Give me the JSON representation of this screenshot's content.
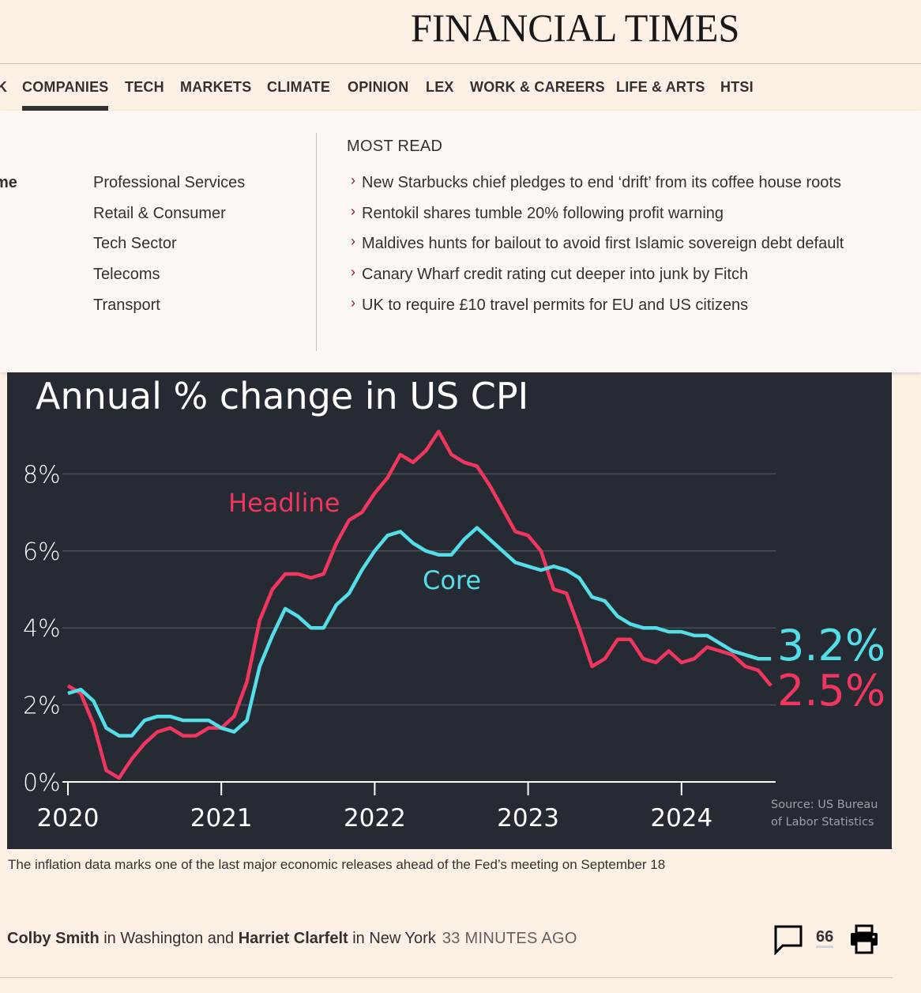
{
  "masthead": {
    "logo": "FINANCIAL TIMES"
  },
  "nav": {
    "items": [
      {
        "label": "K",
        "active": false
      },
      {
        "label": "COMPANIES",
        "active": true
      },
      {
        "label": "TECH",
        "active": false
      },
      {
        "label": "MARKETS",
        "active": false
      },
      {
        "label": "CLIMATE",
        "active": false
      },
      {
        "label": "OPINION",
        "active": false
      },
      {
        "label": "LEX",
        "active": false
      },
      {
        "label": "WORK & CAREERS",
        "active": false
      },
      {
        "label": "LIFE & ARTS",
        "active": false
      },
      {
        "label": "HTSI",
        "active": false
      }
    ]
  },
  "dropdown": {
    "cut_label": "me",
    "sublinks": [
      "Professional Services",
      "Retail & Consumer",
      "Tech Sector",
      "Telecoms",
      "Transport"
    ],
    "most_read_title": "MOST READ",
    "chevron_icon": "›",
    "most_read": [
      "New Starbucks chief pledges to end ‘drift’ from its coffee house roots",
      "Rentokil shares tumble 20% following profit warning",
      "Maldives hunts for bailout to avoid first Islamic sovereign debt default",
      "Canary Wharf credit rating cut deeper into junk by Fitch",
      "UK to require £10 travel permits for EU and US citizens"
    ]
  },
  "chart_data": {
    "type": "line",
    "title": "Annual % change in US CPI",
    "xlabel": "",
    "ylabel": "",
    "x_start": "2020-01",
    "x_frequency": "monthly",
    "xticks": [
      "2020",
      "2021",
      "2022",
      "2023",
      "2024"
    ],
    "yticks": [
      "0%",
      "2%",
      "4%",
      "6%",
      "8%"
    ],
    "ylim": [
      0,
      9.5
    ],
    "grid": true,
    "series": [
      {
        "name": "Headline",
        "color": "#f0365f",
        "end_label": "2.5%",
        "values": [
          2.5,
          2.3,
          1.5,
          0.3,
          0.1,
          0.6,
          1.0,
          1.3,
          1.4,
          1.2,
          1.2,
          1.4,
          1.4,
          1.7,
          2.6,
          4.2,
          5.0,
          5.4,
          5.4,
          5.3,
          5.4,
          6.2,
          6.8,
          7.0,
          7.5,
          7.9,
          8.5,
          8.3,
          8.6,
          9.1,
          8.5,
          8.3,
          8.2,
          7.7,
          7.1,
          6.5,
          6.4,
          6.0,
          5.0,
          4.9,
          4.0,
          3.0,
          3.2,
          3.7,
          3.7,
          3.2,
          3.1,
          3.4,
          3.1,
          3.2,
          3.5,
          3.4,
          3.3,
          3.0,
          2.9,
          2.5
        ]
      },
      {
        "name": "Core",
        "color": "#55dde8",
        "end_label": "3.2%",
        "values": [
          2.3,
          2.4,
          2.1,
          1.4,
          1.2,
          1.2,
          1.6,
          1.7,
          1.7,
          1.6,
          1.6,
          1.6,
          1.4,
          1.3,
          1.6,
          3.0,
          3.8,
          4.5,
          4.3,
          4.0,
          4.0,
          4.6,
          4.9,
          5.5,
          6.0,
          6.4,
          6.5,
          6.2,
          6.0,
          5.9,
          5.9,
          6.3,
          6.6,
          6.3,
          6.0,
          5.7,
          5.6,
          5.5,
          5.6,
          5.5,
          5.3,
          4.8,
          4.7,
          4.3,
          4.1,
          4.0,
          4.0,
          3.9,
          3.9,
          3.8,
          3.8,
          3.6,
          3.4,
          3.3,
          3.2,
          3.2
        ]
      }
    ],
    "annotations": [
      "Headline",
      "Core"
    ],
    "source": [
      "Source: US Bureau",
      "of Labor Statistics"
    ]
  },
  "caption": "The inflation data marks one of the last major economic releases ahead of the Fed’s meeting on September 18",
  "byline": {
    "author1": "Colby Smith",
    "loc1": " in Washington and ",
    "author2": "Harriet Clarfelt",
    "loc2": " in New York",
    "time": "33 MINUTES AGO"
  },
  "tools": {
    "comment_count": "66",
    "icons": [
      "comment-icon",
      "print-icon"
    ]
  }
}
